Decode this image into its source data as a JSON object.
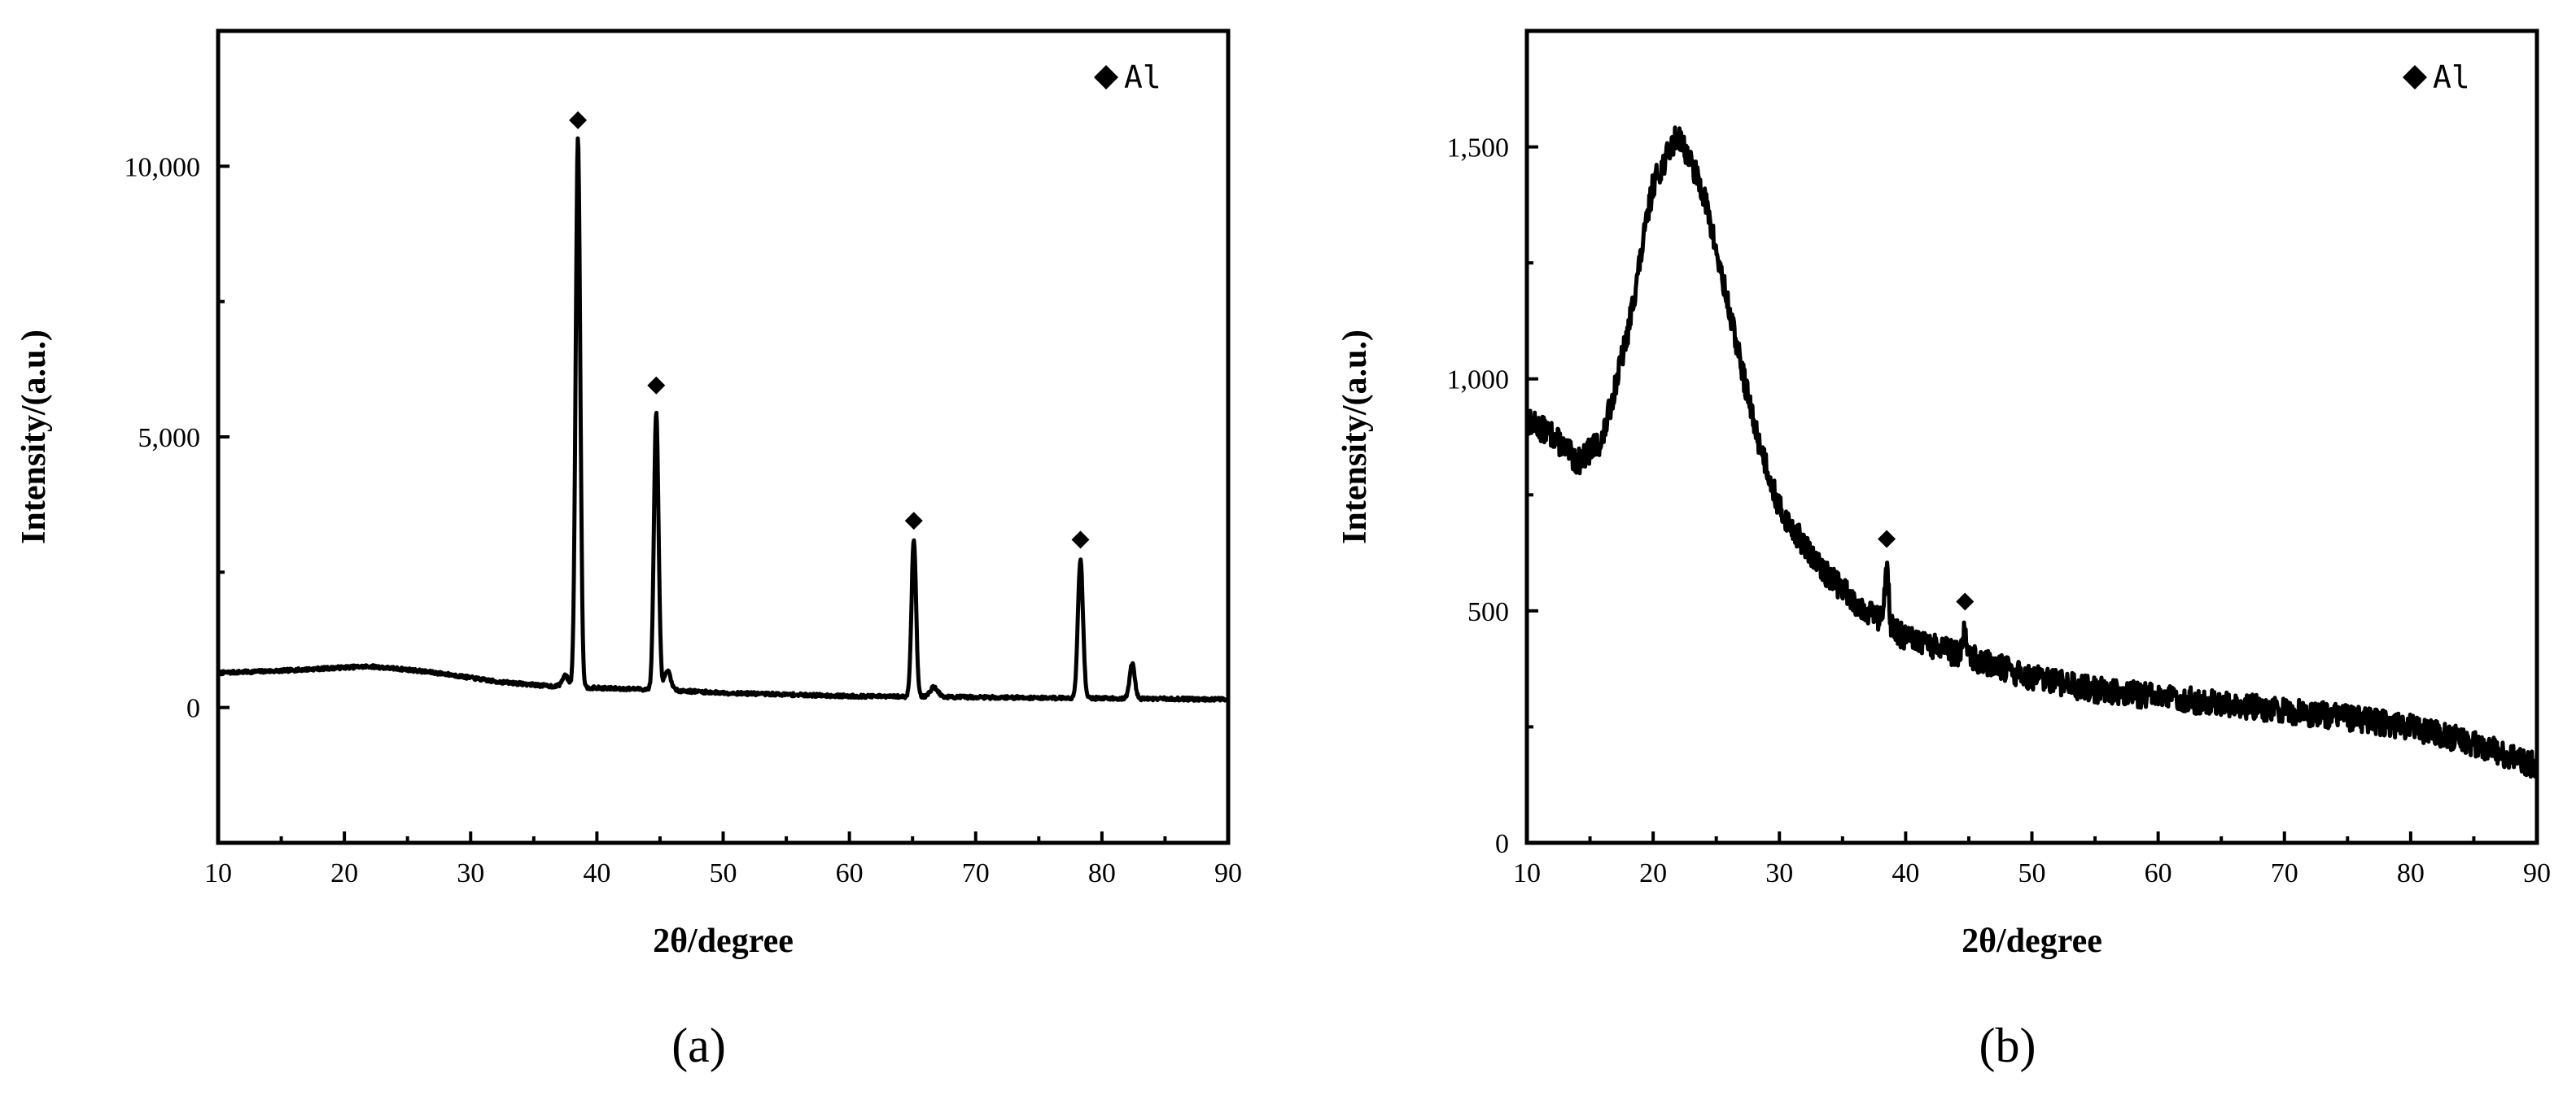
{
  "chart_data": [
    {
      "id": "a",
      "type": "line",
      "panel_label": "(a)",
      "xlabel": "2θ/degree",
      "ylabel": "Intensity/(a.u.)",
      "xlim": [
        10,
        90
      ],
      "ylim": [
        -2500,
        12500
      ],
      "xticks": [
        10,
        20,
        30,
        40,
        50,
        60,
        70,
        80,
        90
      ],
      "xtick_labels": [
        "10",
        "20",
        "30",
        "40",
        "50",
        "60",
        "70",
        "80",
        "90"
      ],
      "yticks": [
        0,
        5000,
        10000
      ],
      "ytick_labels": [
        "0",
        "5,000",
        "10,000"
      ],
      "legend": {
        "marker": "◆",
        "label": "Al",
        "position": "top-right"
      },
      "series": [
        {
          "baseline": [
            [
              10,
              640
            ],
            [
              15,
              680
            ],
            [
              20,
              740
            ],
            [
              22,
              760
            ],
            [
              25,
              700
            ],
            [
              28,
              620
            ],
            [
              32,
              480
            ],
            [
              36,
              400
            ],
            [
              40,
              360
            ],
            [
              45,
              330
            ],
            [
              50,
              270
            ],
            [
              60,
              210
            ],
            [
              70,
              190
            ],
            [
              80,
              170
            ],
            [
              90,
              150
            ]
          ],
          "peaks": [
            {
              "x": 37.5,
              "y": 200,
              "w": 0.25
            },
            {
              "x": 38.5,
              "y": 10150,
              "w": 0.18
            },
            {
              "x": 44.7,
              "y": 5150,
              "w": 0.18
            },
            {
              "x": 45.6,
              "y": 350,
              "w": 0.25
            },
            {
              "x": 65.1,
              "y": 2900,
              "w": 0.18
            },
            {
              "x": 66.7,
              "y": 180,
              "w": 0.3
            },
            {
              "x": 78.3,
              "y": 2550,
              "w": 0.2
            },
            {
              "x": 82.4,
              "y": 650,
              "w": 0.2
            }
          ],
          "noise": 30,
          "seed": 7
        }
      ],
      "markers": [
        {
          "x": 38.5,
          "y": 10850
        },
        {
          "x": 44.7,
          "y": 5950
        },
        {
          "x": 65.1,
          "y": 3450
        },
        {
          "x": 78.3,
          "y": 3100
        }
      ]
    },
    {
      "id": "b",
      "type": "line",
      "panel_label": "(b)",
      "xlabel": "2θ/degree",
      "ylabel": "Intensity/(a.u.)",
      "xlim": [
        10,
        90
      ],
      "ylim": [
        0,
        1750
      ],
      "xticks": [
        10,
        20,
        30,
        40,
        50,
        60,
        70,
        80,
        90
      ],
      "xtick_labels": [
        "10",
        "20",
        "30",
        "40",
        "50",
        "60",
        "70",
        "80",
        "90"
      ],
      "yticks": [
        0,
        500,
        1000,
        1500
      ],
      "ytick_labels": [
        "0",
        "500",
        "1,000",
        "1,500"
      ],
      "legend": {
        "marker": "◆",
        "label": "Al",
        "position": "top-right"
      },
      "series": [
        {
          "baseline": [
            [
              10,
              910
            ],
            [
              12,
              880
            ],
            [
              14,
              820
            ],
            [
              16,
              870
            ],
            [
              18,
              1100
            ],
            [
              20,
              1420
            ],
            [
              22,
              1530
            ],
            [
              24,
              1400
            ],
            [
              26,
              1150
            ],
            [
              28,
              900
            ],
            [
              30,
              720
            ],
            [
              33,
              600
            ],
            [
              36,
              520
            ],
            [
              40,
              440
            ],
            [
              45,
              400
            ],
            [
              50,
              355
            ],
            [
              55,
              330
            ],
            [
              60,
              315
            ],
            [
              65,
              300
            ],
            [
              70,
              285
            ],
            [
              75,
              270
            ],
            [
              80,
              250
            ],
            [
              85,
              215
            ],
            [
              90,
              165
            ]
          ],
          "peaks": [
            {
              "x": 38.5,
              "y": 140,
              "w": 0.15
            },
            {
              "x": 44.7,
              "y": 60,
              "w": 0.15
            }
          ],
          "noise": 28,
          "seed": 13
        }
      ],
      "markers": [
        {
          "x": 38.5,
          "y": 655
        },
        {
          "x": 44.7,
          "y": 520
        }
      ]
    }
  ]
}
